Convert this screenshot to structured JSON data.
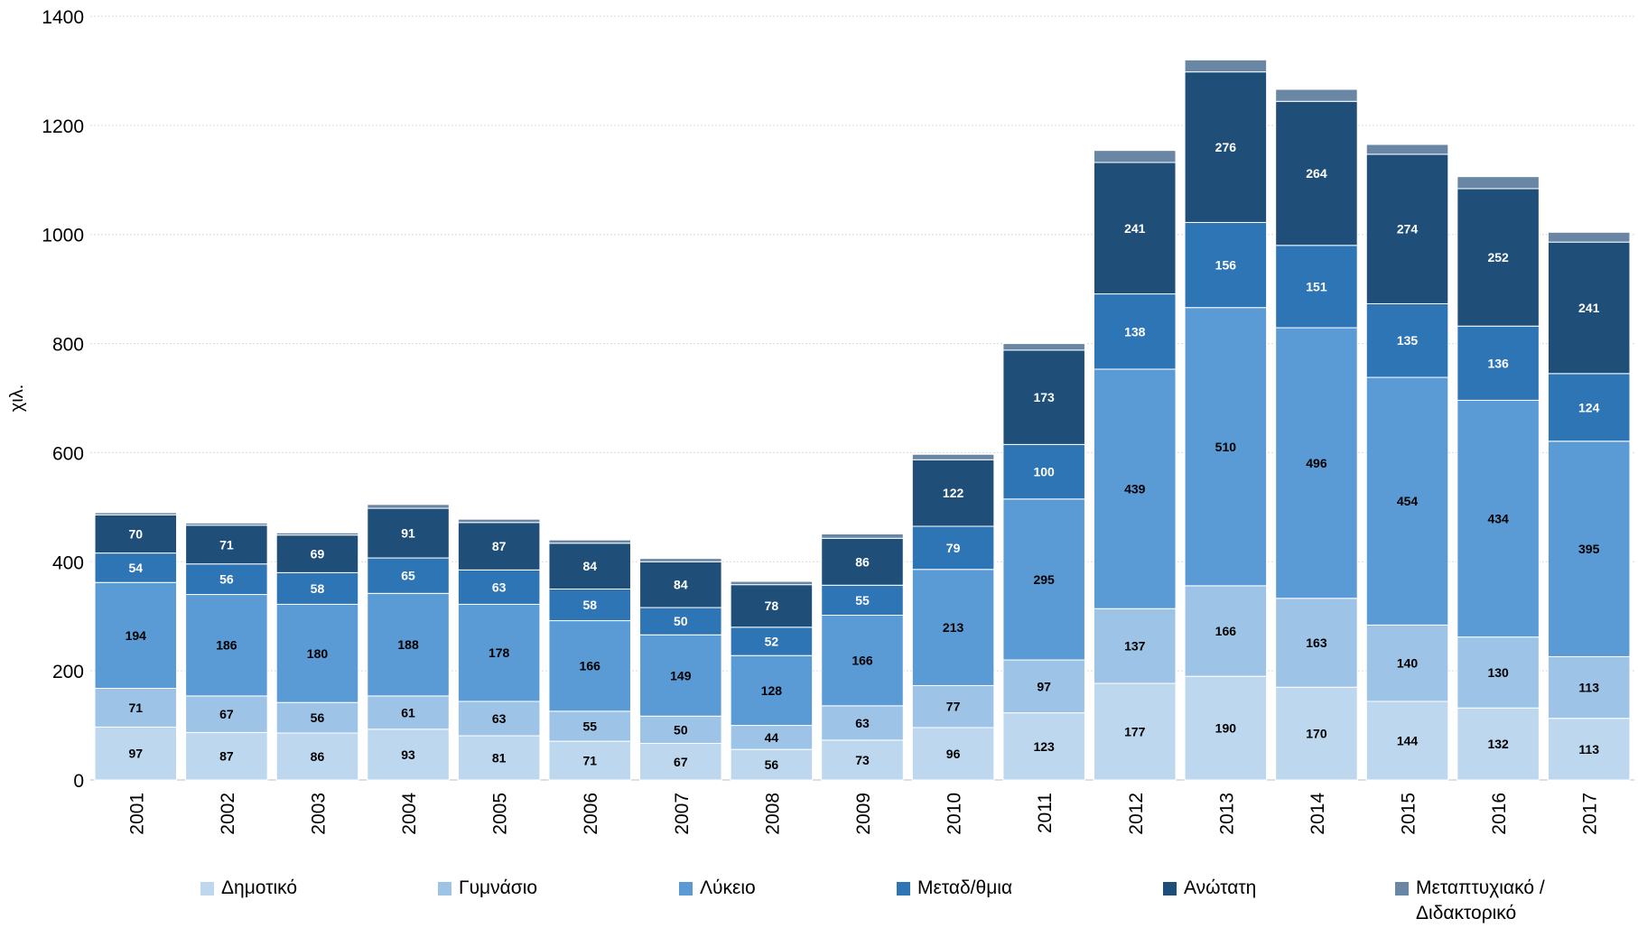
{
  "chart_data": {
    "type": "bar",
    "stacked": true,
    "ylabel": "χιλ.",
    "ylim": [
      0,
      1400
    ],
    "yticks": [
      0,
      200,
      400,
      600,
      800,
      1000,
      1200,
      1400
    ],
    "grid": true,
    "legend_position": "bottom",
    "categories": [
      "2001",
      "2002",
      "2003",
      "2004",
      "2005",
      "2006",
      "2007",
      "2008",
      "2009",
      "2010",
      "2011",
      "2012",
      "2013",
      "2014",
      "2015",
      "2016",
      "2017"
    ],
    "series": [
      {
        "name": "Δημοτικό",
        "color": "#bdd7ee",
        "label_color": "#000000",
        "values": [
          97,
          87,
          86,
          93,
          81,
          71,
          67,
          56,
          73,
          96,
          123,
          177,
          190,
          170,
          144,
          132,
          113
        ]
      },
      {
        "name": "Γυμνάσιο",
        "color": "#9dc3e6",
        "label_color": "#000000",
        "values": [
          71,
          67,
          56,
          61,
          63,
          55,
          50,
          44,
          63,
          77,
          97,
          137,
          166,
          163,
          140,
          130,
          113
        ]
      },
      {
        "name": "Λύκειο",
        "color": "#5b9bd5",
        "label_color": "#000000",
        "values": [
          194,
          186,
          180,
          188,
          178,
          166,
          149,
          128,
          166,
          213,
          295,
          439,
          510,
          496,
          454,
          434,
          395
        ]
      },
      {
        "name": "Μεταδ/θμια",
        "color": "#2e75b6",
        "label_color": "#ffffff",
        "values": [
          54,
          56,
          58,
          65,
          63,
          58,
          50,
          52,
          55,
          79,
          100,
          138,
          156,
          151,
          135,
          136,
          124
        ]
      },
      {
        "name": "Ανώτατη",
        "color": "#1f4e79",
        "label_color": "#ffffff",
        "values": [
          70,
          71,
          69,
          91,
          87,
          84,
          84,
          78,
          86,
          122,
          173,
          241,
          276,
          264,
          274,
          252,
          241
        ]
      },
      {
        "name": "Μεταπτυχιακό /\nΔιδακτορικό",
        "color": "#6a86a5",
        "label_color": "#ffffff",
        "show_labels": false,
        "values": [
          4,
          4,
          4,
          7,
          6,
          6,
          6,
          6,
          8,
          10,
          12,
          22,
          22,
          22,
          18,
          22,
          18
        ]
      }
    ]
  }
}
